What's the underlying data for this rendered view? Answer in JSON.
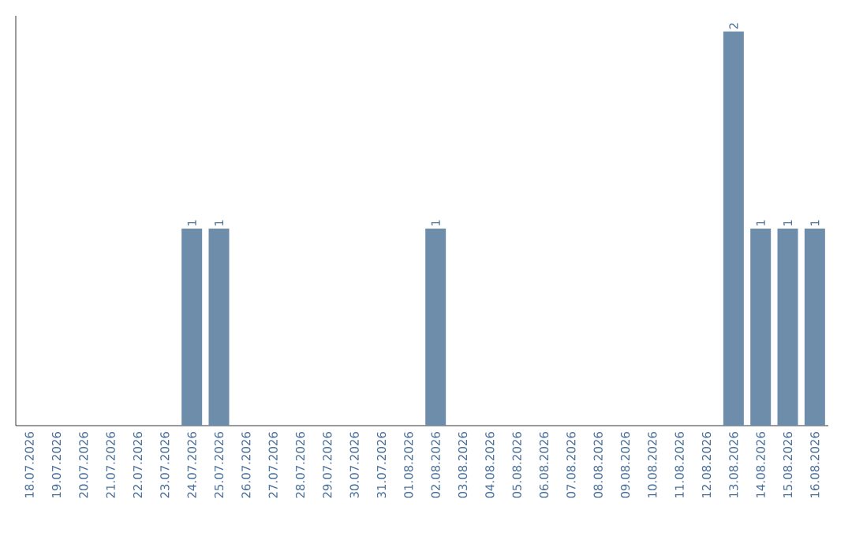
{
  "chart_data": {
    "type": "bar",
    "categories": [
      "18.07.2026",
      "19.07.2026",
      "20.07.2026",
      "21.07.2026",
      "22.07.2026",
      "23.07.2026",
      "24.07.2026",
      "25.07.2026",
      "26.07.2026",
      "27.07.2026",
      "28.07.2026",
      "29.07.2026",
      "30.07.2026",
      "31.07.2026",
      "01.08.2026",
      "02.08.2026",
      "03.08.2026",
      "04.08.2026",
      "05.08.2026",
      "06.08.2026",
      "07.08.2026",
      "08.08.2026",
      "09.08.2026",
      "10.08.2026",
      "11.08.2026",
      "12.08.2026",
      "13.08.2026",
      "14.08.2026",
      "15.08.2026",
      "16.08.2026"
    ],
    "values": [
      0,
      0,
      0,
      0,
      0,
      0,
      1,
      1,
      0,
      0,
      0,
      0,
      0,
      0,
      0,
      1,
      0,
      0,
      0,
      0,
      0,
      0,
      0,
      0,
      0,
      0,
      2,
      1,
      1,
      1
    ],
    "value_labels": [
      null,
      null,
      null,
      null,
      null,
      null,
      "1",
      "1",
      null,
      null,
      null,
      null,
      null,
      null,
      null,
      "1",
      null,
      null,
      null,
      null,
      null,
      null,
      null,
      null,
      null,
      null,
      "2",
      "1",
      "1",
      "1"
    ],
    "color": "#6d8dab",
    "ylim": [
      0,
      2.08
    ]
  }
}
